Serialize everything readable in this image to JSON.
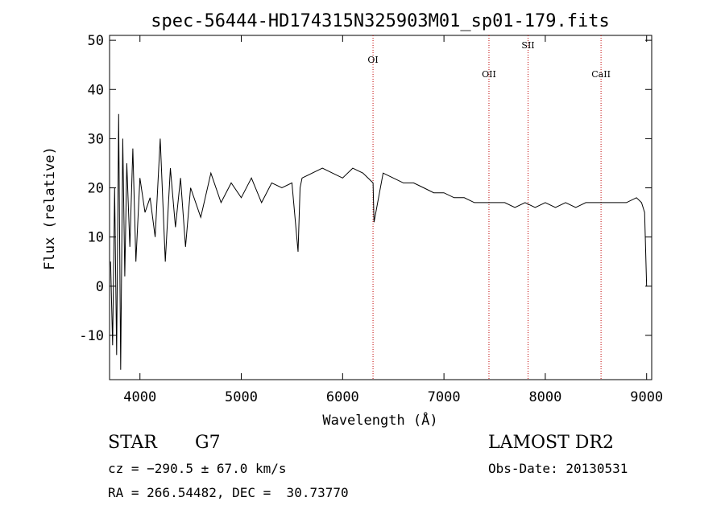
{
  "chart_data": {
    "type": "line",
    "title": "spec-56444-HD174315N325903M01_sp01-179.fits",
    "xlabel": "Wavelength (Å)",
    "ylabel": "Flux (relative)",
    "xlim": [
      3700,
      9050
    ],
    "ylim": [
      -19,
      51
    ],
    "xticks": [
      4000,
      5000,
      6000,
      7000,
      8000,
      9000
    ],
    "yticks": [
      -10,
      0,
      10,
      20,
      30,
      40,
      50
    ],
    "grid": false,
    "spectral_lines": [
      {
        "name": "OI",
        "wavelength": 6300
      },
      {
        "name": "OII",
        "wavelength": 7444
      },
      {
        "name": "SII",
        "wavelength": 7830
      },
      {
        "name": "CaII",
        "wavelength": 8550
      }
    ],
    "series": [
      {
        "x": [
          3710,
          3730,
          3750,
          3770,
          3790,
          3810,
          3830,
          3850,
          3870,
          3900,
          3930,
          3960,
          4000,
          4050,
          4100,
          4150,
          4200,
          4250,
          4300,
          4350,
          4400,
          4450,
          4500,
          4600,
          4700,
          4800,
          4900,
          5000,
          5100,
          5200,
          5300,
          5400,
          5500,
          5560,
          5580,
          5600,
          5700,
          5800,
          5900,
          6000,
          6100,
          6200,
          6300,
          6310,
          6400,
          6500,
          6600,
          6700,
          6800,
          6900,
          7000,
          7100,
          7200,
          7300,
          7400,
          7500,
          7600,
          7700,
          7800,
          7900,
          8000,
          8100,
          8200,
          8300,
          8400,
          8500,
          8600,
          8700,
          8800,
          8900,
          8950,
          8980,
          9000
        ],
        "y": [
          5,
          -12,
          20,
          -14,
          35,
          -17,
          30,
          2,
          25,
          8,
          28,
          5,
          22,
          15,
          18,
          10,
          30,
          5,
          24,
          12,
          22,
          8,
          20,
          14,
          23,
          17,
          21,
          18,
          22,
          17,
          21,
          20,
          21,
          7,
          20,
          22,
          23,
          24,
          23,
          22,
          24,
          23,
          21,
          13,
          23,
          22,
          21,
          21,
          20,
          19,
          19,
          18,
          18,
          17,
          17,
          17,
          17,
          16,
          17,
          16,
          17,
          16,
          17,
          16,
          17,
          17,
          17,
          17,
          17,
          18,
          17,
          15,
          0
        ]
      }
    ]
  },
  "info": {
    "object_class": "STAR",
    "subclass": "G7",
    "cz": "cz = −290.5 ± 67.0 km/s",
    "coords": "RA = 266.54482, DEC =  30.73770",
    "survey": "LAMOST DR2",
    "obs_date": "Obs-Date: 20130531"
  }
}
